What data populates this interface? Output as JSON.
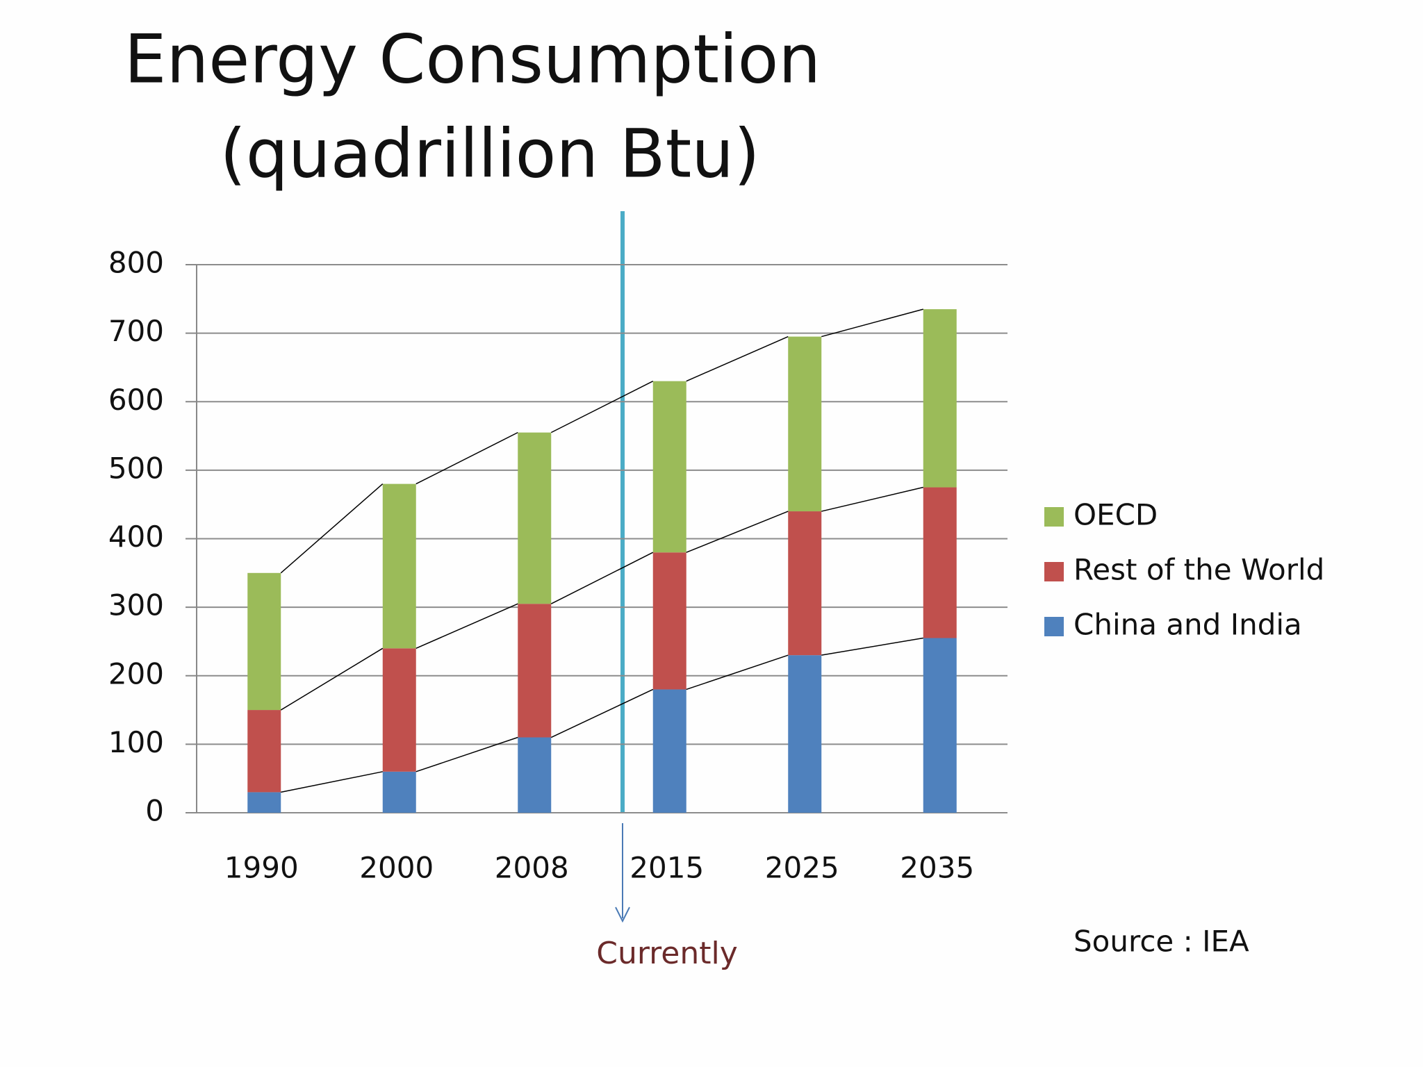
{
  "chart_data": {
    "type": "stacked_bar",
    "title": [
      "Energy Consumption",
      "(quadrillion Btu)"
    ],
    "categories": [
      "1990",
      "2000",
      "2008",
      "2015",
      "2025",
      "2035"
    ],
    "series": [
      {
        "name": "China and India",
        "color": "#4f81bd",
        "values": [
          30,
          60,
          110,
          180,
          230,
          255
        ]
      },
      {
        "name": "Rest of the World",
        "color": "#c0504d",
        "values": [
          120,
          180,
          195,
          200,
          210,
          220
        ]
      },
      {
        "name": "OECD",
        "color": "#9bbb59",
        "values": [
          200,
          240,
          250,
          250,
          255,
          260
        ]
      }
    ],
    "ylim": [
      0,
      800
    ],
    "yticks": [
      0,
      100,
      200,
      300,
      400,
      500,
      600,
      700,
      800
    ],
    "grid": true,
    "legend": "right",
    "annotations": {
      "current": "Currently",
      "source": "Source : IEA"
    }
  }
}
